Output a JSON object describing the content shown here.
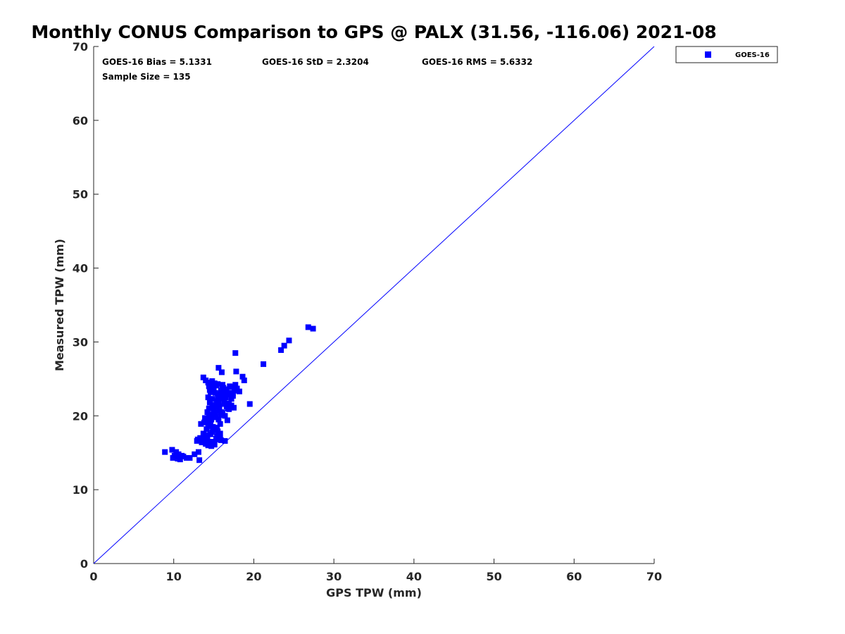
{
  "chart_data": {
    "type": "scatter",
    "title": "Monthly CONUS Comparison to GPS @ PALX (31.56, -116.06) 2021-08",
    "xlabel": "GPS TPW (mm)",
    "ylabel": "Measured TPW (mm)",
    "xlim": [
      0,
      70
    ],
    "ylim": [
      0,
      70
    ],
    "xticks": [
      "0",
      "10",
      "20",
      "30",
      "40",
      "50",
      "60",
      "70"
    ],
    "yticks": [
      "0",
      "10",
      "20",
      "30",
      "40",
      "50",
      "60",
      "70"
    ],
    "grid": false,
    "legend_position": "outside-top-right",
    "stats": {
      "bias": "GOES-16 Bias = 5.1331",
      "std": "GOES-16 StD = 2.3204",
      "rms": "GOES-16 RMS = 5.6332",
      "sample": "Sample Size = 135"
    },
    "reference_line": {
      "type": "one-to-one",
      "color": "#0000ff"
    },
    "series": [
      {
        "name": "GOES-16",
        "color": "#0000ff",
        "marker": "square",
        "points": [
          [
            8.9,
            15.1
          ],
          [
            9.8,
            15.4
          ],
          [
            10.3,
            15.1
          ],
          [
            9.9,
            14.3
          ],
          [
            10.5,
            14.2
          ],
          [
            10.8,
            14.1
          ],
          [
            11.2,
            14.5
          ],
          [
            11.6,
            14.3
          ],
          [
            12.0,
            14.3
          ],
          [
            12.6,
            14.8
          ],
          [
            13.1,
            15.1
          ],
          [
            13.2,
            14.0
          ],
          [
            13.0,
            16.8
          ],
          [
            13.3,
            17.0
          ],
          [
            13.5,
            16.4
          ],
          [
            13.8,
            16.6
          ],
          [
            14.0,
            16.2
          ],
          [
            14.2,
            16.8
          ],
          [
            14.5,
            16.3
          ],
          [
            14.7,
            15.9
          ],
          [
            14.6,
            17.5
          ],
          [
            14.1,
            17.2
          ],
          [
            13.7,
            17.6
          ],
          [
            13.4,
            18.9
          ],
          [
            13.8,
            19.1
          ],
          [
            14.0,
            19.5
          ],
          [
            14.3,
            18.8
          ],
          [
            14.6,
            19.2
          ],
          [
            14.9,
            18.5
          ],
          [
            15.2,
            18.1
          ],
          [
            15.5,
            17.9
          ],
          [
            15.6,
            16.8
          ],
          [
            15.9,
            16.7
          ],
          [
            16.4,
            16.6
          ],
          [
            15.3,
            16.9
          ],
          [
            14.8,
            17.8
          ],
          [
            14.2,
            20.5
          ],
          [
            14.4,
            21.0
          ],
          [
            14.7,
            20.2
          ],
          [
            15.0,
            19.8
          ],
          [
            15.3,
            19.9
          ],
          [
            15.6,
            19.5
          ],
          [
            15.8,
            18.9
          ],
          [
            14.5,
            21.8
          ],
          [
            14.8,
            22.3
          ],
          [
            15.1,
            21.5
          ],
          [
            15.4,
            22.0
          ],
          [
            15.7,
            21.3
          ],
          [
            14.3,
            22.5
          ],
          [
            14.6,
            23.2
          ],
          [
            14.9,
            23.8
          ],
          [
            15.2,
            23.1
          ],
          [
            15.5,
            22.7
          ],
          [
            15.8,
            22.4
          ],
          [
            14.4,
            24.0
          ],
          [
            14.7,
            24.3
          ],
          [
            15.0,
            23.6
          ],
          [
            15.3,
            24.1
          ],
          [
            15.9,
            23.5
          ],
          [
            16.2,
            22.8
          ],
          [
            13.7,
            25.2
          ],
          [
            14.0,
            24.8
          ],
          [
            14.3,
            24.5
          ],
          [
            15.6,
            26.5
          ],
          [
            16.0,
            25.9
          ],
          [
            16.2,
            23.8
          ],
          [
            16.5,
            23.3
          ],
          [
            16.8,
            22.9
          ],
          [
            17.1,
            23.1
          ],
          [
            17.4,
            22.7
          ],
          [
            16.3,
            21.6
          ],
          [
            16.6,
            21.2
          ],
          [
            16.9,
            21.7
          ],
          [
            17.2,
            21.4
          ],
          [
            17.5,
            21.1
          ],
          [
            16.1,
            20.4
          ],
          [
            15.7,
            20.7
          ],
          [
            16.4,
            20.0
          ],
          [
            16.7,
            19.4
          ],
          [
            16.9,
            20.9
          ],
          [
            17.3,
            23.9
          ],
          [
            17.6,
            23.4
          ],
          [
            17.9,
            23.7
          ],
          [
            18.2,
            23.3
          ],
          [
            17.7,
            24.2
          ],
          [
            17.8,
            26.0
          ],
          [
            17.7,
            28.5
          ],
          [
            18.6,
            25.3
          ],
          [
            18.8,
            24.8
          ],
          [
            19.5,
            21.6
          ],
          [
            21.2,
            27.0
          ],
          [
            23.4,
            28.9
          ],
          [
            23.8,
            29.5
          ],
          [
            24.4,
            30.2
          ],
          [
            26.8,
            32.0
          ],
          [
            27.4,
            31.8
          ],
          [
            15.1,
            16.1
          ],
          [
            14.9,
            16.5
          ],
          [
            15.4,
            17.2
          ],
          [
            15.8,
            17.6
          ],
          [
            14.1,
            18.2
          ],
          [
            14.6,
            18.6
          ],
          [
            15.9,
            20.5
          ],
          [
            16.3,
            22.2
          ],
          [
            16.1,
            24.2
          ],
          [
            15.5,
            24.3
          ],
          [
            14.8,
            24.7
          ],
          [
            13.9,
            19.7
          ],
          [
            14.4,
            19.9
          ],
          [
            15.0,
            20.8
          ],
          [
            15.3,
            21.2
          ],
          [
            15.7,
            22.9
          ],
          [
            16.6,
            23.6
          ],
          [
            17.0,
            24.0
          ],
          [
            16.0,
            20.1
          ],
          [
            14.2,
            17.4
          ],
          [
            13.6,
            16.9
          ],
          [
            12.9,
            16.6
          ],
          [
            10.1,
            14.6
          ],
          [
            10.6,
            14.8
          ],
          [
            11.0,
            14.6
          ],
          [
            14.8,
            21.5
          ],
          [
            15.2,
            20.4
          ],
          [
            15.6,
            21.8
          ],
          [
            16.5,
            22.5
          ],
          [
            17.2,
            22.3
          ],
          [
            14.5,
            23.5
          ],
          [
            15.1,
            24.4
          ],
          [
            14.7,
            19.5
          ],
          [
            15.4,
            18.4
          ],
          [
            16.8,
            21.0
          ],
          [
            13.9,
            16.9
          ],
          [
            15.8,
            16.9
          ],
          [
            14.3,
            16.0
          ],
          [
            17.4,
            23.0
          ]
        ]
      }
    ]
  }
}
